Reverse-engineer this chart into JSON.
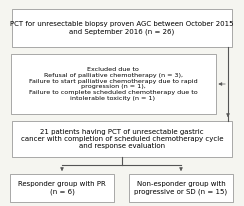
{
  "box1_text": "PCT for unresectable biopsy proven AGC between October 2015\nand September 2016 (n = 26)",
  "box2_text": "Excluded due to\nRefusal of palliative chemotherapy (n = 3),\nFailure to start palliative chemotherapy due to rapid\nprogression (n = 1),\nFailure to complete scheduled chemotherapy due to\nintolerable toxicity (n = 1)",
  "box3_text": "21 patients having PCT of unresectable gastric\ncancer with completion of scheduled chemotherapy cycle\nand response evaluation",
  "box4_text": "Responder group with PR\n(n = 6)",
  "box5_text": "Non-esponder group with\nprogressive or SD (n = 15)",
  "box_edge_color": "#888888",
  "box_fill_color": "#ffffff",
  "arrow_color": "#555555",
  "bg_color": "#f5f5f0",
  "font_size": 5.0,
  "lw": 0.5
}
